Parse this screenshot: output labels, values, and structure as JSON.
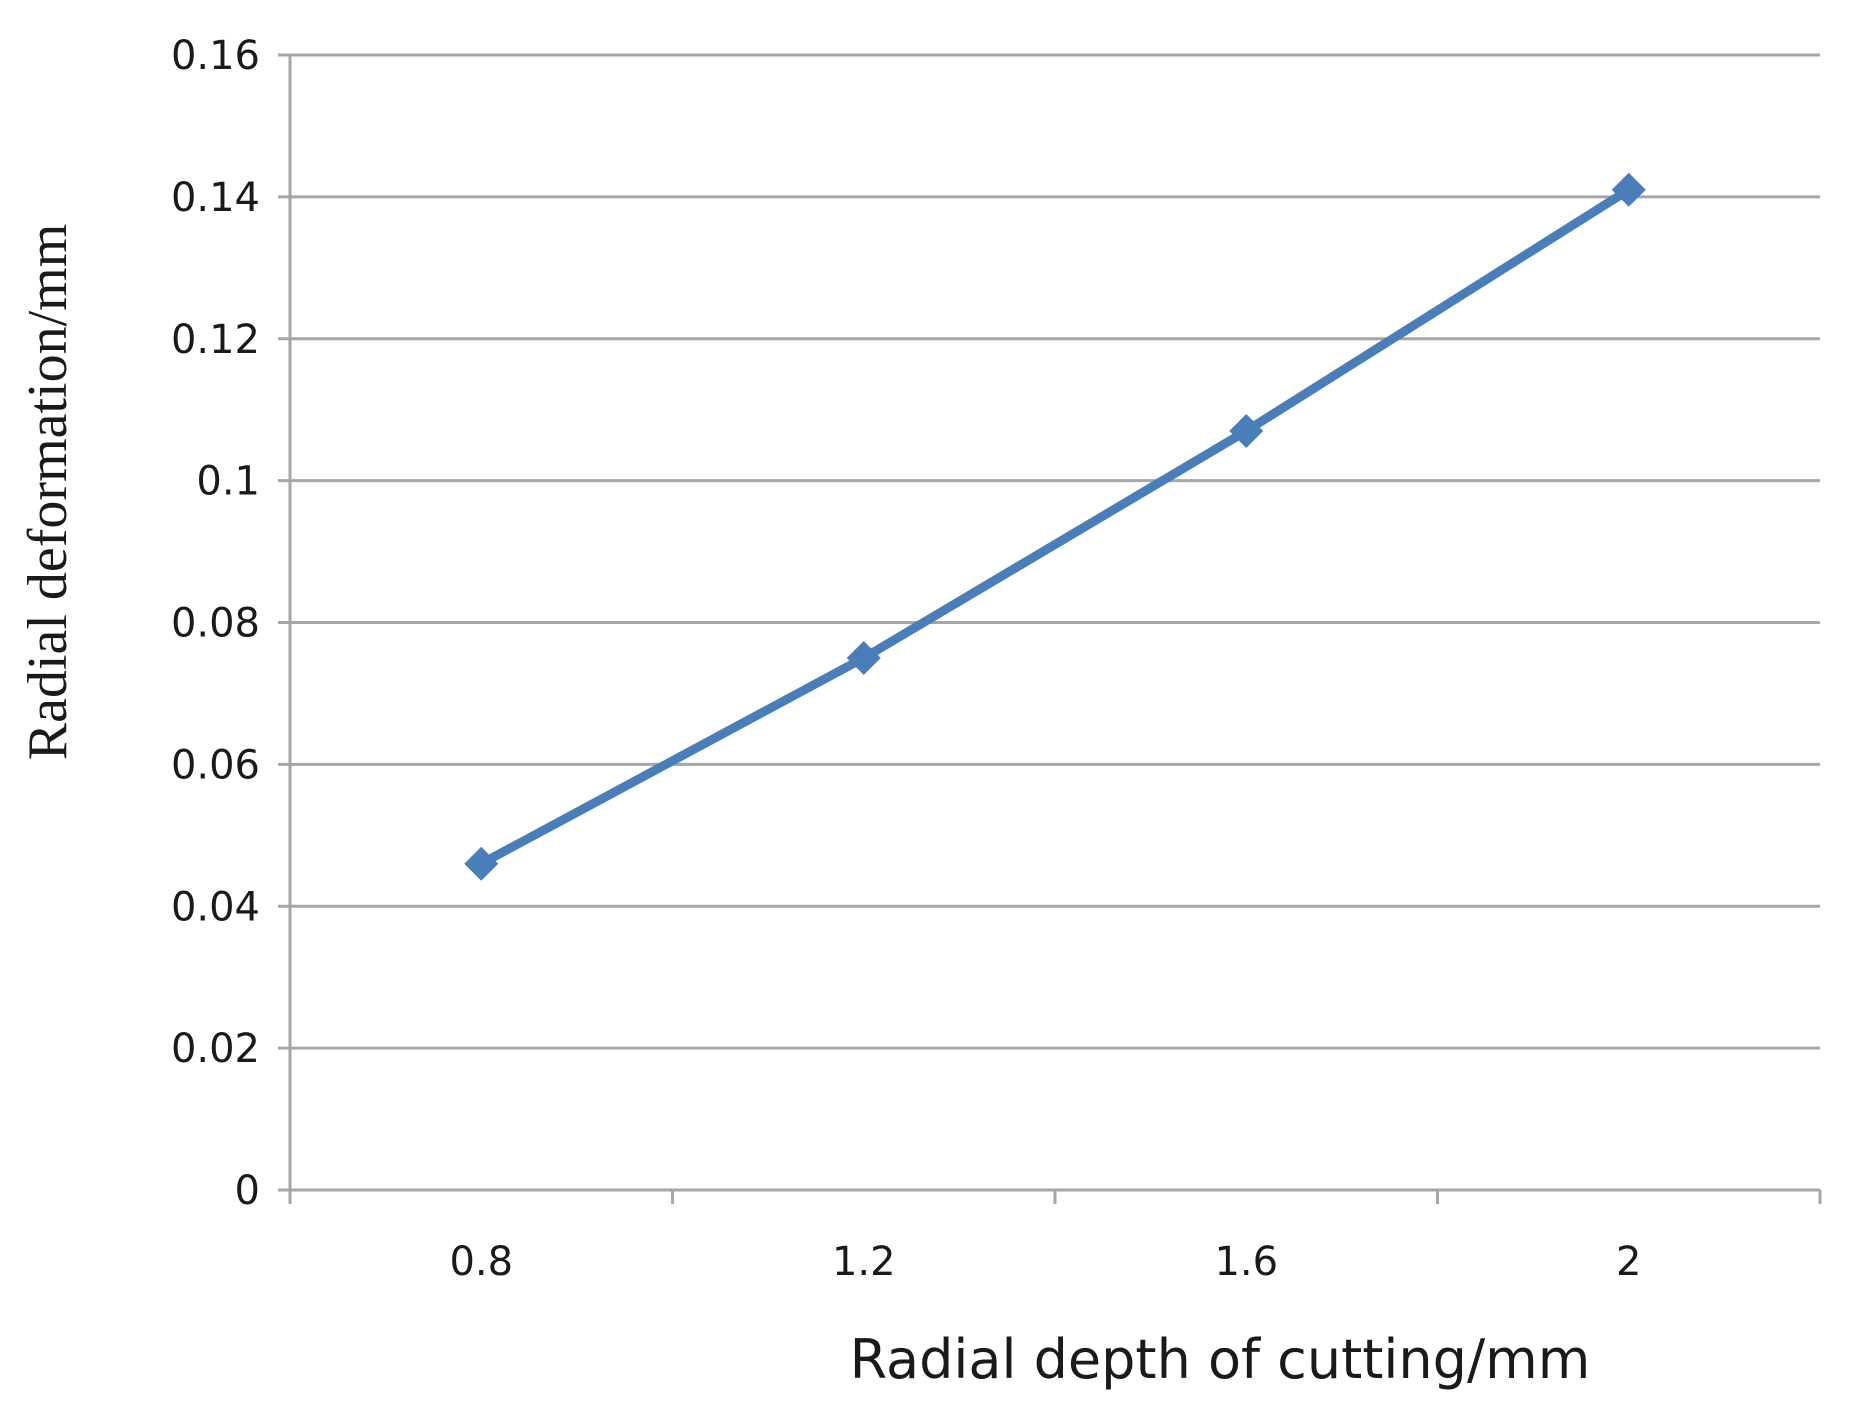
{
  "chart_data": {
    "type": "line",
    "title": "",
    "xlabel": "Radial depth of cutting/mm",
    "ylabel": "Radial deformation/mm",
    "categories": [
      "0.8",
      "1.2",
      "1.6",
      "2"
    ],
    "series": [
      {
        "values": [
          0.046,
          0.075,
          0.107,
          0.141
        ],
        "color": "#4a7ebb",
        "marker": "diamond"
      }
    ],
    "ylim": [
      0,
      0.16
    ],
    "yticks": [
      0,
      0.02,
      0.04,
      0.06,
      0.08,
      0.1,
      0.12,
      0.14,
      0.16
    ],
    "ytick_labels": [
      "0",
      "0.02",
      "0.04",
      "0.06",
      "0.08",
      "0.1",
      "0.12",
      "0.14",
      "0.16"
    ],
    "grid": "horizontal",
    "gridline_color": "#a6a6a6",
    "legend": "none"
  }
}
